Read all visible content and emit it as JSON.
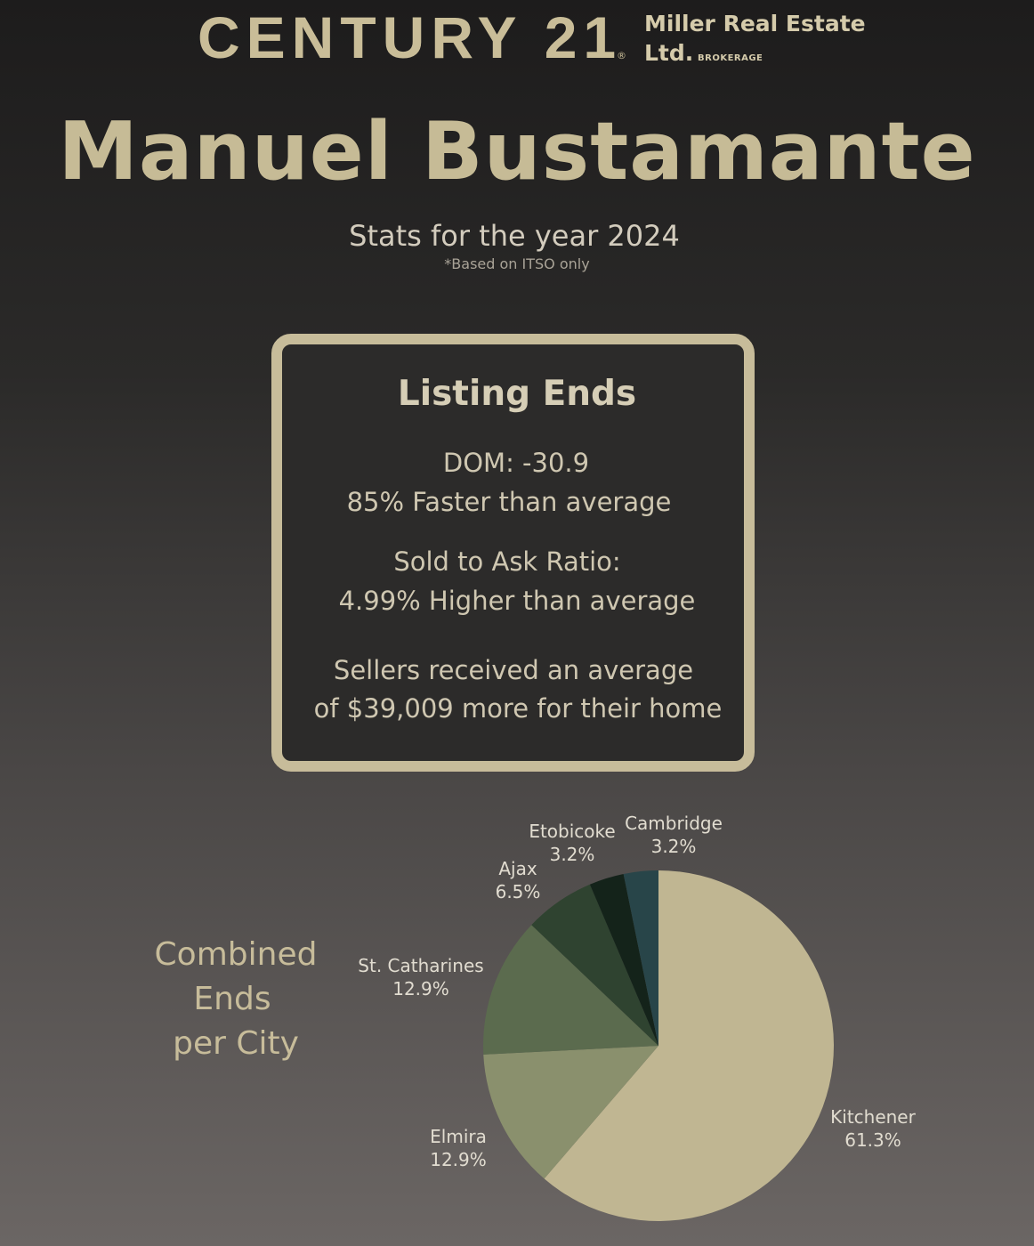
{
  "brand": {
    "name": "CENTURY 21",
    "registered_mark": "®",
    "office_line1": "Miller Real Estate",
    "office_line2": "Ltd.",
    "office_tag": "BROKERAGE"
  },
  "agent": {
    "name": "Manuel Bustamante"
  },
  "stats": {
    "title": "Stats for the year 2024",
    "note": "*Based on ITSO only"
  },
  "listing_card": {
    "title": "Listing Ends",
    "dom_line": "DOM: -30.9",
    "dom_compare": "85% Faster than average",
    "ratio_line": "Sold to Ask Ratio:",
    "ratio_compare": "4.99% Higher than average",
    "sellers_line1": "Sellers received an average",
    "sellers_line2": "of $39,009 more for their home"
  },
  "pie_caption": {
    "line1": "Combined",
    "line2": "Ends",
    "line3": "per City"
  },
  "chart_data": {
    "type": "pie",
    "title": "Combined Ends per City",
    "unit": "%",
    "slices": [
      {
        "label": "Kitchener",
        "value": 61.3,
        "display": "61.3%",
        "color": "#c0b692"
      },
      {
        "label": "Elmira",
        "value": 12.9,
        "display": "12.9%",
        "color": "#8a906d"
      },
      {
        "label": "St. Catharines",
        "value": 12.9,
        "display": "12.9%",
        "color": "#5b6b4e"
      },
      {
        "label": "Ajax",
        "value": 6.5,
        "display": "6.5%",
        "color": "#2f4330"
      },
      {
        "label": "Etobicoke",
        "value": 3.2,
        "display": "3.2%",
        "color": "#14231a"
      },
      {
        "label": "Cambridge",
        "value": 3.2,
        "display": "3.2%",
        "color": "#284549"
      }
    ]
  }
}
